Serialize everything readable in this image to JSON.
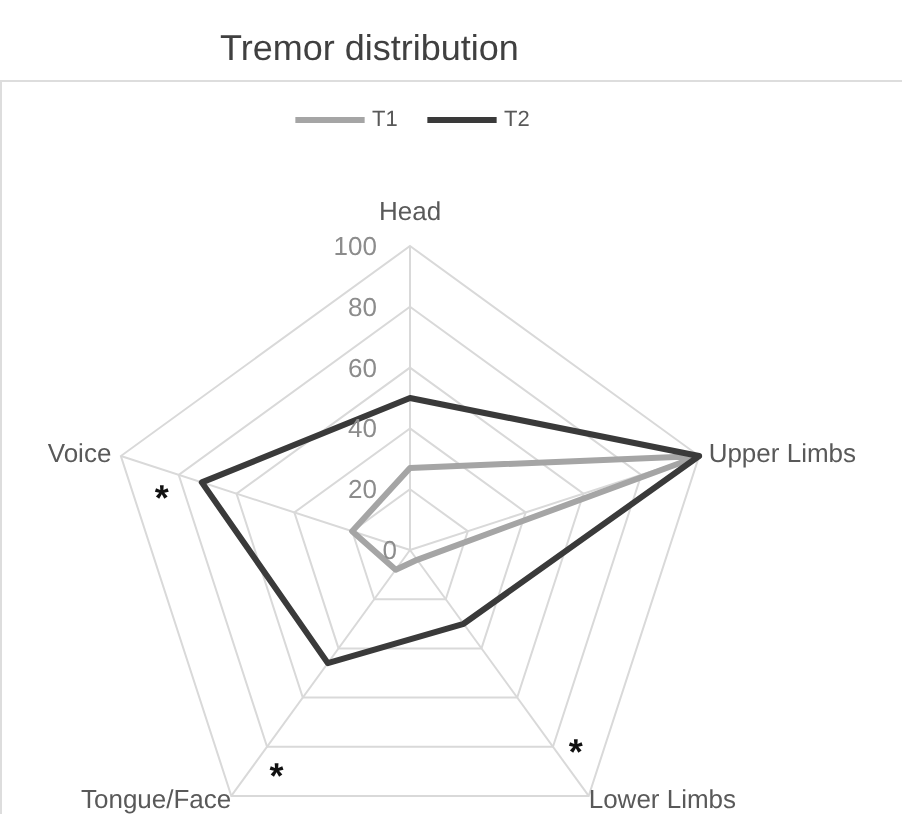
{
  "chart_data": {
    "type": "radar",
    "title": "Tremor distribution",
    "categories": [
      "Head",
      "Upper Limbs",
      "Lower Limbs",
      "Tongue/Face",
      "Voice"
    ],
    "series": [
      {
        "name": "T1",
        "color": "#a5a5a5",
        "values": [
          27,
          100,
          4,
          8,
          20
        ]
      },
      {
        "name": "T2",
        "color": "#3a3a3a",
        "values": [
          50,
          100,
          30,
          46,
          72
        ]
      }
    ],
    "ylim": [
      0,
      100
    ],
    "yticks": [
      0,
      20,
      40,
      60,
      80,
      100
    ],
    "grid": true,
    "legend": "top",
    "annotations": [
      {
        "text": "*",
        "x": "Voice"
      },
      {
        "text": "*",
        "x": "Tongue/Face"
      },
      {
        "text": "*",
        "x": "Lower Limbs"
      }
    ]
  }
}
